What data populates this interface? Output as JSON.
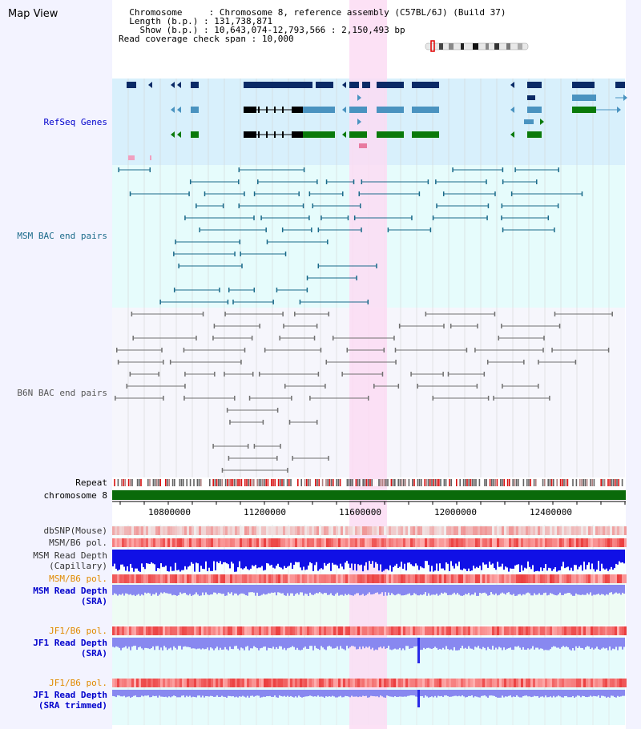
{
  "title": "Map View",
  "header": {
    "chromosome_key": "Chromosome",
    "chromosome_value": "Chromosome 8, reference assembly (C57BL/6J) (Build 37)",
    "length_key": "Length (b.p.)",
    "length_value": "131,738,871",
    "show_key": "Show (b.p.)",
    "show_value": "10,643,074-12,793,566 : 2,150,493 bp",
    "coverage_key": "Read coverage check span",
    "coverage_value": "10,000"
  },
  "tracks": {
    "refseq": "RefSeq Genes",
    "msm_bac": "MSM BAC end pairs",
    "b6n_bac": "B6N BAC end pairs",
    "repeat": "Repeat",
    "chromosome": "chromosome 8",
    "dbsnp": "dbSNP(Mouse)",
    "msm_b6_pol": "MSM/B6 pol.",
    "msm_read_depth_cap_1": "MSM Read Depth",
    "msm_read_depth_cap_2": "(Capillary)",
    "msm_b6_pol_2": "MSM/B6 pol.",
    "msm_read_depth_sra_1": "MSM Read Depth",
    "msm_read_depth_sra_2": "(SRA)",
    "jf1_b6_pol": "JF1/B6 pol.",
    "jf1_read_depth_1": "JF1 Read Depth",
    "jf1_read_depth_2": "(SRA)",
    "jf1_b6_pol_2": "JF1/B6 pol.",
    "jf1_trimmed_1": "JF1 Read Depth",
    "jf1_trimmed_2": "(SRA trimmed)"
  },
  "axis": {
    "ticks": [
      "10800000",
      "11200000",
      "11600000",
      "12000000",
      "12400000"
    ]
  },
  "colors": {
    "refseq_bg": "#d8f0fc",
    "msm_bg": "#e6fcfc",
    "b6n_bg": "#f6f6fc",
    "highlight": "#fbdcf3",
    "gene_dark": "#0a2a66",
    "gene_mid": "#4a93c0",
    "gene_green": "#0a7a0a",
    "msm_line": "#1a6a8a",
    "b6n_line": "#707070",
    "chrom_bar": "#0a6a0a",
    "depth_cap": "#1010e6",
    "depth_sra": "#8888f0",
    "label_blue": "#0000cc",
    "label_orange": "#e08a00"
  }
}
